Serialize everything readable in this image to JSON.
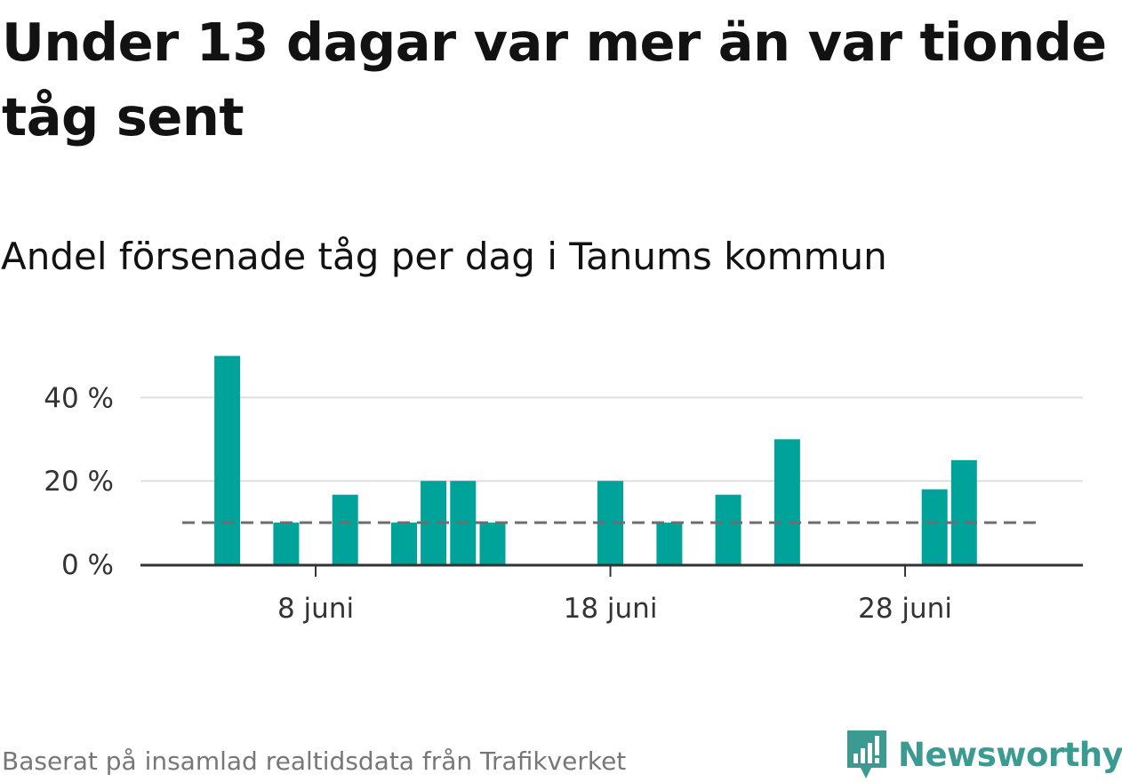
{
  "header": {
    "title": "Under 13 dagar var mer än var tionde tåg sent",
    "subtitle": "Andel försenade tåg per dag i Tanums kommun"
  },
  "footer": {
    "source": "Baserat på insamlad realtidsdata från Trafikverket",
    "brand": "Newsworthy",
    "brand_color": "#3b9a92",
    "logo_icon": "newsworthy-logo-icon"
  },
  "chart_data": {
    "type": "bar",
    "x": [
      "1 juni",
      "2 juni",
      "3 juni",
      "4 juni",
      "5 juni",
      "6 juni",
      "7 juni",
      "8 juni",
      "9 juni",
      "10 juni",
      "11 juni",
      "12 juni",
      "13 juni",
      "14 juni",
      "15 juni",
      "16 juni",
      "17 juni",
      "18 juni",
      "19 juni",
      "20 juni",
      "21 juni",
      "22 juni",
      "23 juni",
      "24 juni",
      "25 juni",
      "26 juni",
      "27 juni",
      "28 juni",
      "29 juni",
      "30 juni"
    ],
    "values": [
      0,
      0,
      0,
      0,
      50,
      0,
      10,
      0,
      16.7,
      0,
      10,
      20,
      20,
      10,
      0,
      0,
      0,
      20,
      0,
      10,
      0,
      16.7,
      0,
      30,
      0,
      0,
      0,
      0,
      18,
      25
    ],
    "xticks": [
      {
        "value": "8 juni",
        "label": "8 juni"
      },
      {
        "value": "18 juni",
        "label": "18 juni"
      },
      {
        "value": "28 juni",
        "label": "28 juni"
      }
    ],
    "yticks": [
      {
        "value": 0,
        "label": "0 %"
      },
      {
        "value": 20,
        "label": "20 %"
      },
      {
        "value": 40,
        "label": "40 %"
      }
    ],
    "ylim": [
      0,
      52
    ],
    "reference_line": {
      "value": 10,
      "style": "dashed",
      "color": "#6d6d72"
    },
    "bar_color": "#00a39a",
    "grid": true
  }
}
